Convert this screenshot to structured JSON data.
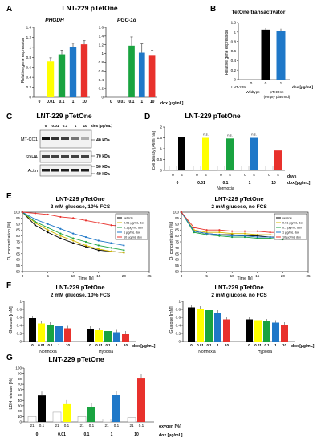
{
  "figure": {
    "panels": {
      "A": {
        "letter": "A",
        "title": "LNT-229 pTetOne",
        "ylabel": "Relative gene expression",
        "subtitles": [
          "PHGDH",
          "PGC-1α"
        ],
        "x_unit": "dox [µg/mL]"
      },
      "B": {
        "letter": "B",
        "title": "TetOne transactivator",
        "ylabel": "Relative gene expression",
        "group1": "LNT-229 Wildtype",
        "group2": "pTetOne (empty plasmid)",
        "x_unit": "dox [µg/mL]"
      },
      "C": {
        "letter": "C",
        "title": "LNT-229 pTetOne",
        "dox_label": "dox [µg/mL]",
        "lanes": [
          "0",
          "0.01",
          "0.1",
          "1",
          "10"
        ],
        "proteins": [
          "MT-CO1",
          "SDHA",
          "Actin"
        ],
        "markers": [
          "40 kDa",
          "70 kDa",
          "50 kDa",
          "40 kDa"
        ]
      },
      "D": {
        "letter": "D",
        "title": "LNT-229 pTetOne",
        "ylabel": "Cell density (A595 nm)",
        "days_label": "days",
        "condition": "Normoxia",
        "x_unit": "dox [µg/mL]",
        "sig": "n.s."
      },
      "E": {
        "letter": "E",
        "title": "LNT-229 pTetOne",
        "left_subtitle": "2 mM glucose, 10% FCS",
        "right_subtitle": "2 mM glucose, no FCS",
        "ylabel": "O₂ concentration [%]",
        "xlabel": "Time [h]",
        "legend": [
          "vehicle",
          "0.01 µg/mL dox",
          "0.1 µg/mL dox",
          "1 µg/mL dox",
          "10 µg/mL dox"
        ]
      },
      "F": {
        "letter": "F",
        "title": "LNT-229 pTetOne",
        "left_subtitle": "2 mM glucose, 10% FCS",
        "right_subtitle": "2 mM glucose, no FCS",
        "ylabel": "Glucose [mM]",
        "normoxia": "Normoxia",
        "hypoxia": "Hypoxia",
        "x_unit": "dox [µg/mL]"
      },
      "G": {
        "letter": "G",
        "title": "LNT-229 pTetOne",
        "ylabel": "LDH release [%]",
        "oxygen_label": "oxygen [%]",
        "dox_label": "dox [µg/mL]"
      }
    }
  },
  "chart_data": [
    {
      "id": "A1",
      "type": "bar",
      "title": "PHGDH",
      "categories": [
        "0",
        "0.01",
        "0.1",
        "1",
        "10"
      ],
      "values": [
        0.0,
        0.72,
        0.86,
        1.0,
        1.06
      ],
      "errors": [
        0.0,
        0.07,
        0.08,
        0.08,
        0.07
      ],
      "ylim": [
        0,
        1.4
      ],
      "yticks": [
        "0",
        "0.2",
        "0.4",
        "0.6",
        "0.8",
        "1",
        "1.2",
        "1.4"
      ],
      "colors": [
        "#000000",
        "#ffff00",
        "#19a340",
        "#1f78c8",
        "#e8312c"
      ]
    },
    {
      "id": "A2",
      "type": "bar",
      "title": "PGC-1α",
      "categories": [
        "0",
        "0.01",
        "0.1",
        "1",
        "10"
      ],
      "values": [
        0.0,
        0.0,
        1.18,
        1.02,
        0.95
      ],
      "errors": [
        0.0,
        0.0,
        0.2,
        0.2,
        0.12
      ],
      "ylim": [
        0,
        1.6
      ],
      "yticks": [
        "0",
        "0.2",
        "0.4",
        "0.6",
        "0.8",
        "1",
        "1.2",
        "1.4",
        "1.6"
      ],
      "colors": [
        "#000000",
        "#ffff00",
        "#19a340",
        "#1f78c8",
        "#e8312c"
      ]
    },
    {
      "id": "B",
      "type": "bar",
      "title": "TetOne transactivator",
      "categories": [
        "0",
        "0",
        "1"
      ],
      "values": [
        0.0,
        1.05,
        1.02
      ],
      "errors": [
        0.0,
        0.03,
        0.05
      ],
      "ylim": [
        0,
        1.2
      ],
      "yticks": [
        "0",
        "0.2",
        "0.4",
        "0.6",
        "0.8",
        "1",
        "1.2"
      ],
      "colors": [
        "#000000",
        "#000000",
        "#1f78c8"
      ]
    },
    {
      "id": "D",
      "type": "bar",
      "title": "LNT-229 pTetOne",
      "categories": [
        "0",
        "0.01",
        "0.1",
        "1",
        "10"
      ],
      "sub_categories": [
        "0",
        "4"
      ],
      "values_day0": [
        0.2,
        0.2,
        0.2,
        0.2,
        0.2
      ],
      "values_day4": [
        1.52,
        1.5,
        1.47,
        1.5,
        0.92
      ],
      "ylim": [
        0,
        2.0
      ],
      "yticks": [
        "0",
        "0.5",
        "1",
        "1.5",
        "2"
      ],
      "colors": [
        "#000000",
        "#ffff00",
        "#19a340",
        "#1f78c8",
        "#e8312c"
      ]
    },
    {
      "id": "E1",
      "type": "line",
      "title": "2 mM glucose, 10% FCS",
      "x": [
        0,
        2.5,
        5,
        7.5,
        10,
        12.5,
        15,
        17.5,
        20
      ],
      "series": [
        {
          "name": "vehicle",
          "color": "#000000",
          "values": [
            100,
            89,
            83,
            78,
            74,
            71,
            68,
            67,
            66
          ]
        },
        {
          "name": "0.01 µg/mL dox",
          "color": "#d4b800",
          "values": [
            100,
            91,
            85,
            80,
            76,
            72,
            69,
            67,
            66
          ]
        },
        {
          "name": "0.1 µg/mL dox",
          "color": "#19a340",
          "values": [
            100,
            92,
            87,
            82,
            78,
            75,
            72,
            70,
            68
          ]
        },
        {
          "name": "1 µg/mL dox",
          "color": "#1f78c8",
          "values": [
            100,
            94,
            90,
            86,
            82,
            79,
            76,
            74,
            72
          ]
        },
        {
          "name": "10 µg/mL dox",
          "color": "#e8312c",
          "values": [
            100,
            99,
            98,
            96,
            95,
            93,
            91,
            89,
            88
          ]
        }
      ],
      "xlim": [
        0,
        25
      ],
      "xticks": [
        "0",
        "5",
        "10",
        "15",
        "20",
        "25"
      ],
      "ylim": [
        50,
        100
      ],
      "yticks": [
        "50",
        "55",
        "60",
        "65",
        "70",
        "75",
        "80",
        "85",
        "90",
        "95",
        "100"
      ]
    },
    {
      "id": "E2",
      "type": "line",
      "title": "2 mM glucose, no FCS",
      "x": [
        0,
        2.5,
        5,
        7.5,
        10,
        12.5,
        15,
        17.5,
        20
      ],
      "series": [
        {
          "name": "vehicle",
          "color": "#000000",
          "values": [
            100,
            84,
            82,
            81,
            81,
            80,
            80,
            79,
            79
          ]
        },
        {
          "name": "0.01 µg/mL dox",
          "color": "#d4b800",
          "values": [
            100,
            85,
            83,
            83,
            82,
            82,
            81,
            81,
            80
          ]
        },
        {
          "name": "0.1 µg/mL dox",
          "color": "#19a340",
          "values": [
            100,
            83,
            81,
            80,
            79,
            79,
            78,
            78,
            77
          ]
        },
        {
          "name": "1 µg/mL dox",
          "color": "#1f78c8",
          "values": [
            100,
            84,
            82,
            81,
            80,
            80,
            79,
            79,
            78
          ]
        },
        {
          "name": "10 µg/mL dox",
          "color": "#e8312c",
          "values": [
            100,
            87,
            85,
            85,
            84,
            84,
            84,
            83,
            83
          ]
        }
      ],
      "xlim": [
        0,
        25
      ],
      "xticks": [
        "0",
        "5",
        "10",
        "15",
        "20",
        "25"
      ],
      "ylim": [
        50,
        100
      ],
      "yticks": [
        "50",
        "55",
        "60",
        "65",
        "70",
        "75",
        "80",
        "85",
        "90",
        "95",
        "100"
      ]
    },
    {
      "id": "F1",
      "type": "bar",
      "title": "2 mM glucose, 10% FCS",
      "groups": [
        "Normoxia",
        "Hypoxia"
      ],
      "categories": [
        "0",
        "0.01",
        "0.1",
        "1",
        "10"
      ],
      "normoxia": [
        0.58,
        0.45,
        0.42,
        0.38,
        0.33
      ],
      "hypoxia": [
        0.32,
        0.28,
        0.26,
        0.23,
        0.2
      ],
      "ylim": [
        0,
        1.0
      ],
      "yticks": [
        "0",
        "0.2",
        "0.4",
        "0.6",
        "0.8",
        "1"
      ],
      "colors": [
        "#000000",
        "#ffff00",
        "#19a340",
        "#1f78c8",
        "#e8312c"
      ]
    },
    {
      "id": "F2",
      "type": "bar",
      "title": "2 mM glucose, no FCS",
      "groups": [
        "Normoxia",
        "Hypoxia"
      ],
      "categories": [
        "0",
        "0.01",
        "0.1",
        "1",
        "10"
      ],
      "normoxia": [
        0.85,
        0.82,
        0.78,
        0.72,
        0.55
      ],
      "hypoxia": [
        0.55,
        0.53,
        0.5,
        0.47,
        0.42
      ],
      "ylim": [
        0,
        1.0
      ],
      "yticks": [
        "0",
        "0.2",
        "0.4",
        "0.6",
        "0.8",
        "1"
      ],
      "colors": [
        "#000000",
        "#ffff00",
        "#19a340",
        "#1f78c8",
        "#e8312c"
      ]
    },
    {
      "id": "G",
      "type": "bar",
      "title": "LNT-229 pTetOne",
      "categories": [
        "0",
        "0.01",
        "0.1",
        "1",
        "10"
      ],
      "oxygen": [
        "21",
        "0.1"
      ],
      "values_21": [
        10,
        18,
        10,
        5,
        8
      ],
      "values_01": [
        49,
        33,
        28,
        50,
        82
      ],
      "ylim": [
        0,
        100
      ],
      "yticks": [
        "0",
        "10",
        "20",
        "30",
        "40",
        "50",
        "60",
        "70",
        "80",
        "90",
        "100"
      ],
      "colors": [
        "#000000",
        "#ffff00",
        "#19a340",
        "#1f78c8",
        "#e8312c"
      ]
    }
  ]
}
